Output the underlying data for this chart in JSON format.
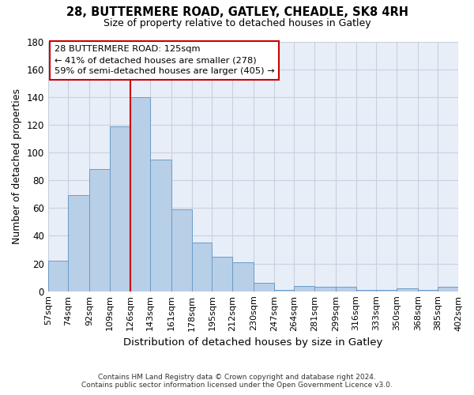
{
  "title1": "28, BUTTERMERE ROAD, GATLEY, CHEADLE, SK8 4RH",
  "title2": "Size of property relative to detached houses in Gatley",
  "xlabel": "Distribution of detached houses by size in Gatley",
  "ylabel": "Number of detached properties",
  "bin_edges": [
    57,
    74,
    92,
    109,
    126,
    143,
    161,
    178,
    195,
    212,
    230,
    247,
    264,
    281,
    299,
    316,
    333,
    350,
    368,
    385,
    402
  ],
  "bar_heights": [
    22,
    69,
    88,
    119,
    140,
    95,
    59,
    35,
    25,
    21,
    6,
    1,
    4,
    3,
    3,
    1,
    1,
    2,
    1,
    3
  ],
  "bar_color": "#b8cfe8",
  "bar_edge_color": "#6a9cc8",
  "grid_color": "#c8d0dc",
  "bg_color": "#e8eef8",
  "vline_x": 126,
  "vline_color": "#cc0000",
  "annotation_line1": "28 BUTTERMERE ROAD: 125sqm",
  "annotation_line2": "← 41% of detached houses are smaller (278)",
  "annotation_line3": "59% of semi-detached houses are larger (405) →",
  "annotation_box_color": "#cc0000",
  "annotation_box_bg": "#ffffff",
  "footnote1": "Contains HM Land Registry data © Crown copyright and database right 2024.",
  "footnote2": "Contains public sector information licensed under the Open Government Licence v3.0.",
  "ylim": [
    0,
    180
  ],
  "yticks": [
    0,
    20,
    40,
    60,
    80,
    100,
    120,
    140,
    160,
    180
  ]
}
